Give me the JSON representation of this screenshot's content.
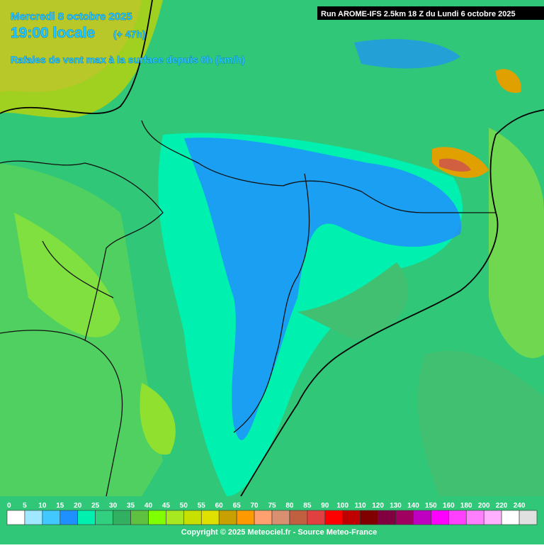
{
  "header": {
    "date": "Mercredi 8 octobre 2025",
    "time": "19:00 locale",
    "offset": "(+ 47h)",
    "parameter": "Rafales de vent max à la surface depuis 0h (km/h)"
  },
  "run": "Run AROME-IFS 2.5km 18 Z du Lundi 6 octobre 2025",
  "legend": {
    "labels": [
      0,
      5,
      10,
      15,
      20,
      25,
      30,
      35,
      40,
      45,
      50,
      55,
      60,
      65,
      70,
      75,
      80,
      85,
      90,
      100,
      110,
      120,
      130,
      140,
      150,
      160,
      180,
      200,
      220,
      240
    ],
    "colors": [
      "#ffffff",
      "#a0e8ff",
      "#40c8ff",
      "#1e90ff",
      "#00f0b0",
      "#30d080",
      "#30b060",
      "#60c040",
      "#80ff00",
      "#a8e820",
      "#c8e000",
      "#e0e000",
      "#c8a000",
      "#ff9900",
      "#ffa070",
      "#d89070",
      "#c06040",
      "#e04040",
      "#ff0000",
      "#c00000",
      "#800000",
      "#800040",
      "#a00060",
      "#c000c0",
      "#ff00ff",
      "#ff40ff",
      "#ff80ff",
      "#ffb0ff",
      "#ffffff",
      "#e0e0e0"
    ]
  },
  "copyright": "Copyright © 2025 Meteociel.fr - Source Meteo-France"
}
